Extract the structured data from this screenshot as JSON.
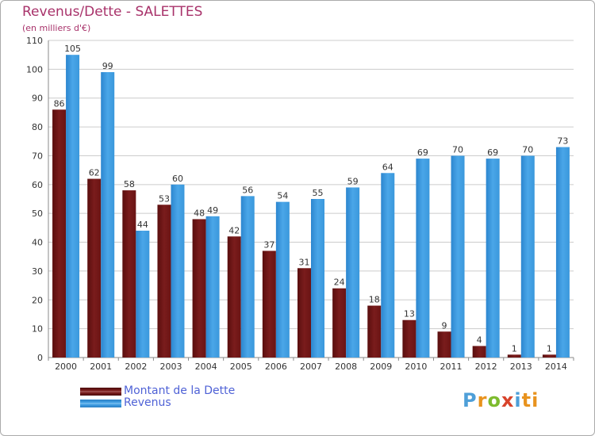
{
  "header": {
    "title": "Revenus/Dette - SALETTES",
    "subtitle": "(en milliers d'€)"
  },
  "legend": {
    "items": [
      {
        "label": "Montant de la Dette",
        "color": "#7a1c1c"
      },
      {
        "label": "Revenus",
        "color": "#3f9ee3"
      }
    ]
  },
  "logo": {
    "text": "Proxiti",
    "letters": [
      "P",
      "r",
      "o",
      "x",
      "i",
      "ti"
    ]
  },
  "chart_data": {
    "type": "bar",
    "title": "Revenus/Dette - SALETTES",
    "subtitle": "(en milliers d'€)",
    "xlabel": "",
    "ylabel": "",
    "ylim": [
      0,
      110
    ],
    "yticks": [
      0,
      10,
      20,
      30,
      40,
      50,
      60,
      70,
      80,
      90,
      100,
      110
    ],
    "grid": true,
    "legend_position": "bottom-left",
    "categories": [
      "2000",
      "2001",
      "2002",
      "2003",
      "2004",
      "2005",
      "2006",
      "2007",
      "2008",
      "2009",
      "2010",
      "2011",
      "2012",
      "2013",
      "2014"
    ],
    "series": [
      {
        "name": "Montant de la Dette",
        "color": "#7a1c1c",
        "values": [
          86,
          62,
          58,
          53,
          48,
          42,
          37,
          31,
          24,
          18,
          13,
          9,
          4,
          1,
          1
        ]
      },
      {
        "name": "Revenus",
        "color": "#3f9ee3",
        "values": [
          105,
          99,
          44,
          60,
          49,
          56,
          54,
          55,
          59,
          64,
          69,
          70,
          69,
          70,
          73
        ]
      }
    ]
  }
}
